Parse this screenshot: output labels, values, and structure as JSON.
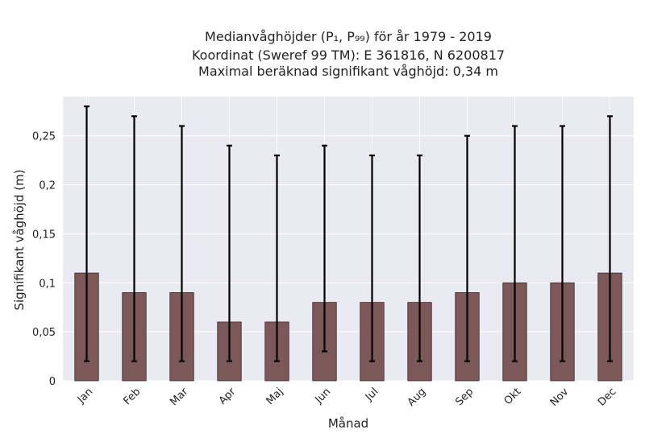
{
  "chart_data": {
    "type": "bar",
    "title": [
      "Medianvåghöjder (P₁, P₉₉) för år 1979 - 2019",
      "Koordinat (Sweref 99 TM): E 361816, N 6200817",
      "Maximal beräknad signifikant våghöjd: 0,34 m"
    ],
    "xlabel": "Månad",
    "ylabel": "Signifikant våghöjd (m)",
    "categories": [
      "Jan",
      "Feb",
      "Mar",
      "Apr",
      "Maj",
      "Jun",
      "Jul",
      "Aug",
      "Sep",
      "Okt",
      "Nov",
      "Dec"
    ],
    "values": [
      0.11,
      0.09,
      0.09,
      0.06,
      0.06,
      0.08,
      0.08,
      0.08,
      0.09,
      0.1,
      0.1,
      0.11
    ],
    "error_low": [
      0.02,
      0.02,
      0.02,
      0.02,
      0.02,
      0.03,
      0.02,
      0.02,
      0.02,
      0.02,
      0.02,
      0.02
    ],
    "error_high": [
      0.28,
      0.27,
      0.26,
      0.24,
      0.23,
      0.24,
      0.23,
      0.23,
      0.25,
      0.26,
      0.26,
      0.27
    ],
    "ylim": [
      0,
      0.29
    ],
    "yticks": [
      0,
      0.05,
      0.1,
      0.15,
      0.2,
      0.25
    ],
    "ytick_labels": [
      "0",
      "0,05",
      "0,1",
      "0,15",
      "0,2",
      "0,25"
    ],
    "grid": true,
    "colors": {
      "bar": "#7c5858",
      "bar_edge": "#3d2a2a",
      "plot_bg": "#eaeaf2",
      "grid": "#ffffff",
      "error": "#000000"
    }
  }
}
